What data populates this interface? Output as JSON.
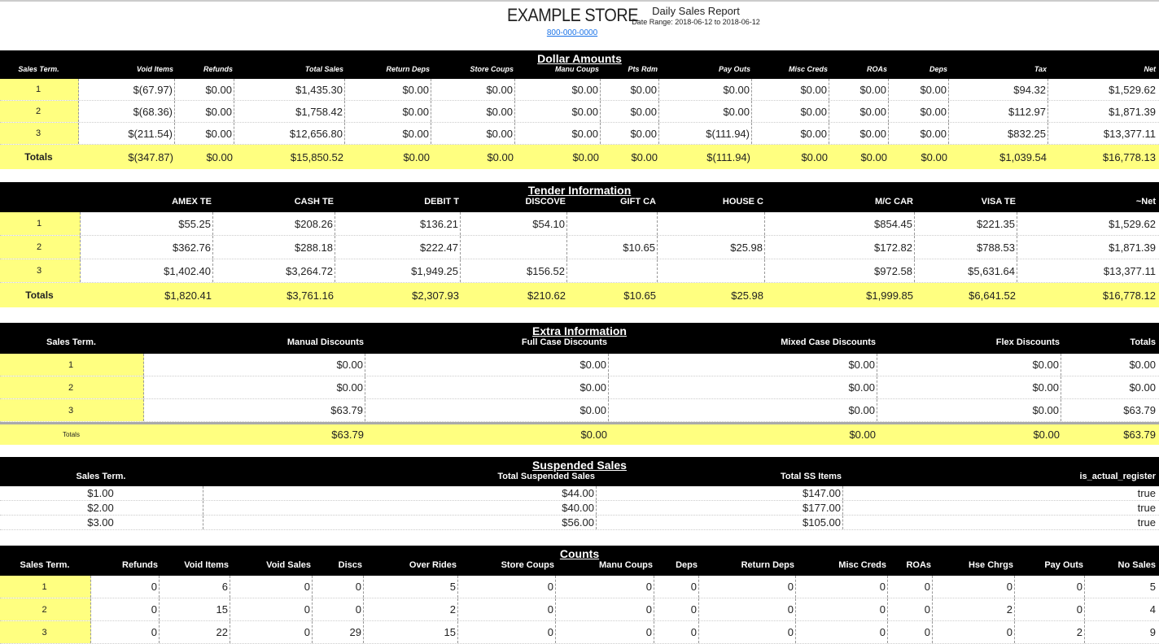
{
  "header": {
    "store": "EXAMPLE STORE",
    "phone": "800-000-0000",
    "report_title": "Daily Sales Report",
    "date_range": "Date Range: 2018-06-12 to 2018-06-12"
  },
  "colors": {
    "header_bg": "#000000",
    "highlight": "#ffff80",
    "link": "#1a73e8"
  },
  "dollar": {
    "title": "Dollar Amounts",
    "columns": [
      "Sales Term.",
      "Void Items",
      "Refunds",
      "Total Sales",
      "Return Deps",
      "Store Coups",
      "Manu Coups",
      "Pts Rdm",
      "Pay Outs",
      "Misc Creds",
      "ROAs",
      "Deps",
      "Tax",
      "Net"
    ],
    "rows": [
      [
        "1",
        "$(67.97)",
        "$0.00",
        "$1,435.30",
        "$0.00",
        "$0.00",
        "$0.00",
        "$0.00",
        "$0.00",
        "$0.00",
        "$0.00",
        "$0.00",
        "$94.32",
        "$1,529.62"
      ],
      [
        "2",
        "$(68.36)",
        "$0.00",
        "$1,758.42",
        "$0.00",
        "$0.00",
        "$0.00",
        "$0.00",
        "$0.00",
        "$0.00",
        "$0.00",
        "$0.00",
        "$112.97",
        "$1,871.39"
      ],
      [
        "3",
        "$(211.54)",
        "$0.00",
        "$12,656.80",
        "$0.00",
        "$0.00",
        "$0.00",
        "$0.00",
        "$(111.94)",
        "$0.00",
        "$0.00",
        "$0.00",
        "$832.25",
        "$13,377.11"
      ]
    ],
    "totals": [
      "Totals",
      "$(347.87)",
      "$0.00",
      "$15,850.52",
      "$0.00",
      "$0.00",
      "$0.00",
      "$0.00",
      "$(111.94)",
      "$0.00",
      "$0.00",
      "$0.00",
      "$1,039.54",
      "$16,778.13"
    ]
  },
  "tender": {
    "title": "Tender Information",
    "columns": [
      "",
      "AMEX TE",
      "CASH TE",
      "DEBIT T",
      "DISCOVE",
      "GIFT CA",
      "HOUSE C",
      "M/C CAR",
      "VISA TE",
      "~Net"
    ],
    "rows": [
      [
        "1",
        "$55.25",
        "$208.26",
        "$136.21",
        "$54.10",
        "",
        "",
        "$854.45",
        "$221.35",
        "$1,529.62"
      ],
      [
        "2",
        "$362.76",
        "$288.18",
        "$222.47",
        "",
        "$10.65",
        "$25.98",
        "$172.82",
        "$788.53",
        "$1,871.39"
      ],
      [
        "3",
        "$1,402.40",
        "$3,264.72",
        "$1,949.25",
        "$156.52",
        "",
        "",
        "$972.58",
        "$5,631.64",
        "$13,377.11"
      ]
    ],
    "totals": [
      "Totals",
      "$1,820.41",
      "$3,761.16",
      "$2,307.93",
      "$210.62",
      "$10.65",
      "$25.98",
      "$1,999.85",
      "$6,641.52",
      "$16,778.12"
    ]
  },
  "extra": {
    "title": "Extra Information",
    "columns": [
      "Sales Term.",
      "Manual Discounts",
      "Full Case Discounts",
      "Mixed Case Discounts",
      "Flex Discounts",
      "Totals"
    ],
    "rows": [
      [
        "1",
        "$0.00",
        "$0.00",
        "$0.00",
        "$0.00",
        "$0.00"
      ],
      [
        "2",
        "$0.00",
        "$0.00",
        "$0.00",
        "$0.00",
        "$0.00"
      ],
      [
        "3",
        "$63.79",
        "$0.00",
        "$0.00",
        "$0.00",
        "$63.79"
      ]
    ],
    "totals": [
      "Totals",
      "$63.79",
      "$0.00",
      "$0.00",
      "$0.00",
      "$63.79"
    ]
  },
  "suspended": {
    "title": "Suspended Sales",
    "columns": [
      "Sales Term.",
      "Total Suspended Sales",
      "Total SS Items",
      "is_actual_register"
    ],
    "rows": [
      [
        "$1.00",
        "$44.00",
        "$147.00",
        "true"
      ],
      [
        "$2.00",
        "$40.00",
        "$177.00",
        "true"
      ],
      [
        "$3.00",
        "$56.00",
        "$105.00",
        "true"
      ]
    ]
  },
  "counts": {
    "title": "Counts",
    "columns": [
      "Sales Term.",
      "Refunds",
      "Void Items",
      "Void Sales",
      "Discs",
      "Over Rides",
      "Store Coups",
      "Manu Coups",
      "Deps",
      "Return Deps",
      "Misc Creds",
      "ROAs",
      "Hse Chrgs",
      "Pay Outs",
      "No Sales"
    ],
    "rows": [
      [
        "1",
        "0",
        "6",
        "0",
        "0",
        "5",
        "0",
        "0",
        "0",
        "0",
        "0",
        "0",
        "0",
        "0",
        "5"
      ],
      [
        "2",
        "0",
        "15",
        "0",
        "0",
        "2",
        "0",
        "0",
        "0",
        "0",
        "0",
        "0",
        "2",
        "0",
        "4"
      ],
      [
        "3",
        "0",
        "22",
        "0",
        "29",
        "15",
        "0",
        "0",
        "0",
        "0",
        "0",
        "0",
        "0",
        "2",
        "9"
      ]
    ]
  }
}
